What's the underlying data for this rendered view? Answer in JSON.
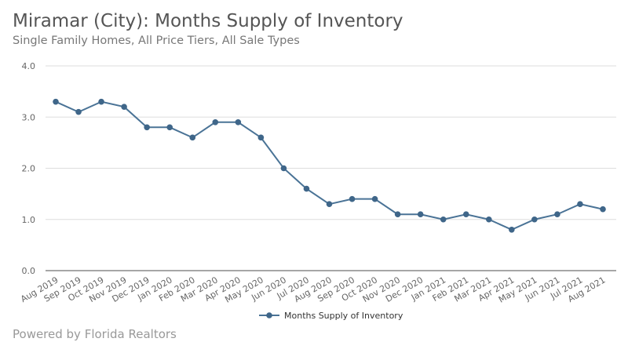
{
  "title": "Miramar (City): Months Supply of Inventory",
  "subtitle": "Single Family Homes, All Price Tiers, All Sale Types",
  "credit": "Powered by Florida Realtors",
  "chart_data": {
    "type": "line",
    "title": "Miramar (City): Months Supply of Inventory",
    "subtitle": "Single Family Homes, All Price Tiers, All Sale Types",
    "xlabel": "",
    "ylabel": "",
    "ylim": [
      0,
      4
    ],
    "yticks": [
      "0.0",
      "1.0",
      "2.0",
      "3.0",
      "4.0"
    ],
    "grid": true,
    "legend_position": "bottom",
    "categories": [
      "Aug 2019",
      "Sep 2019",
      "Oct 2019",
      "Nov 2019",
      "Dec 2019",
      "Jan 2020",
      "Feb 2020",
      "Mar 2020",
      "Apr 2020",
      "May 2020",
      "Jun 2020",
      "Jul 2020",
      "Aug 2020",
      "Sep 2020",
      "Oct 2020",
      "Nov 2020",
      "Dec 2020",
      "Jan 2021",
      "Feb 2021",
      "Mar 2021",
      "Apr 2021",
      "May 2021",
      "Jun 2021",
      "Jul 2021",
      "Aug 2021"
    ],
    "series": [
      {
        "name": "Months Supply of Inventory",
        "color": "#4a7396",
        "values": [
          3.3,
          3.1,
          3.3,
          3.2,
          2.8,
          2.8,
          2.6,
          2.9,
          2.9,
          2.6,
          2.0,
          1.6,
          1.3,
          1.4,
          1.4,
          1.1,
          1.1,
          1.0,
          1.1,
          1.0,
          0.8,
          1.0,
          1.1,
          1.3,
          1.2
        ]
      }
    ]
  }
}
